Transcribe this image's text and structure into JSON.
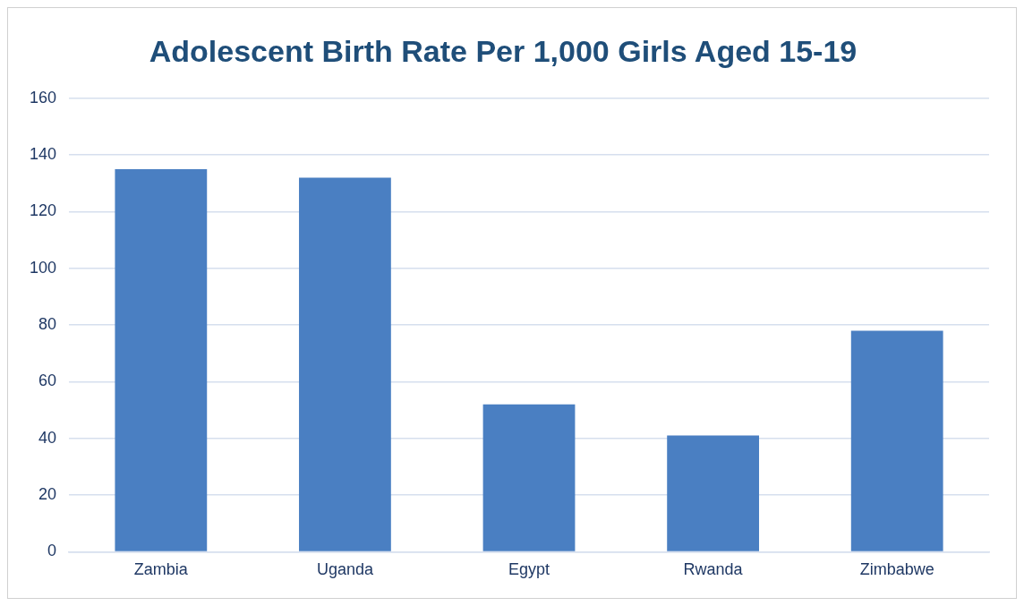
{
  "chart_data": {
    "type": "bar",
    "title": "Adolescent Birth Rate Per 1,000 Girls Aged 15-19",
    "categories": [
      "Zambia",
      "Uganda",
      "Egypt",
      "Rwanda",
      "Zimbabwe"
    ],
    "values": [
      135,
      132,
      52,
      41,
      78
    ],
    "color": "#4a7fc2",
    "ylim": [
      0,
      160
    ],
    "yticks": [
      0,
      20,
      40,
      60,
      80,
      100,
      120,
      140,
      160
    ],
    "grid": "y",
    "legend": false
  }
}
